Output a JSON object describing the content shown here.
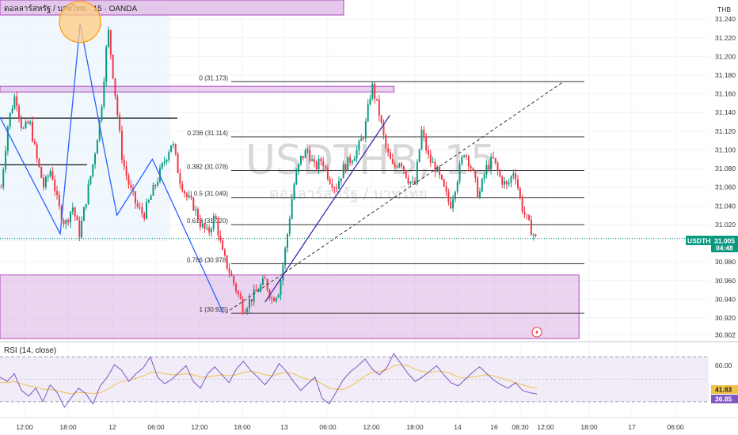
{
  "header": {
    "title": "ดอลลาร์สหรัฐ / บาทไทย · 15 · OANDA",
    "currency": "THB"
  },
  "watermark": {
    "symbol": "USDTHB, 15",
    "name": "ดอลลาร์สหรัฐ / บาทไทย"
  },
  "price_tag": {
    "symbol": "USDTHB",
    "price": "31.005",
    "countdown": "04:48"
  },
  "rsi": {
    "label": "RSI (14, close)",
    "rsi_value": "36.85",
    "ma_value": "41.83",
    "tick_label": "60.00"
  },
  "colors": {
    "background": "#ffffff",
    "up": "#089981",
    "down": "#f23645",
    "zone": "#ce93d8",
    "wave": "#2962ff",
    "rsi_line": "#7e57c2",
    "rsi_ma": "#f0c24a",
    "rsi_band": "#ede7f6",
    "session": "#e3f2fd"
  },
  "icons": [
    "lightning-icon"
  ],
  "chart_data": [
    {
      "type": "candlestick",
      "title": "ดอลลาร์สหรัฐ / บาทไทย · 15 · OANDA",
      "y_ticks": [
        "31.240",
        "31.220",
        "31.200",
        "31.180",
        "31.160",
        "31.140",
        "31.120",
        "31.100",
        "31.080",
        "31.060",
        "31.040",
        "31.020",
        "30.980",
        "30.960",
        "30.940",
        "30.920",
        "30.902"
      ],
      "ylim": [
        30.898,
        31.252
      ],
      "x_ticks": [
        "12:00",
        "18:00",
        "12",
        "06:00",
        "12:00",
        "18:00",
        "13",
        "06:00",
        "12:00",
        "18:00",
        "14",
        "16",
        "08:30",
        "12:00",
        "18:00",
        "17",
        "06:00"
      ],
      "last_price": 31.005,
      "path_points": [
        31.06,
        31.13,
        31.16,
        31.12,
        31.13,
        31.09,
        31.06,
        31.08,
        31.04,
        31.02,
        31.04,
        31.01,
        31.05,
        31.09,
        31.14,
        31.23,
        31.16,
        31.09,
        31.06,
        31.04,
        31.03,
        31.05,
        31.07,
        31.09,
        31.11,
        31.07,
        31.05,
        31.04,
        31.02,
        31.01,
        31.03,
        30.99,
        30.97,
        30.95,
        30.93,
        30.94,
        30.95,
        30.96,
        30.94,
        30.95,
        31.0,
        31.06,
        31.09,
        31.1,
        31.08,
        31.09,
        31.07,
        31.06,
        31.08,
        31.09,
        31.1,
        31.12,
        31.17,
        31.14,
        31.1,
        31.08,
        31.09,
        31.07,
        31.06,
        31.12,
        31.09,
        31.08,
        31.06,
        31.04,
        31.07,
        31.1,
        31.08,
        31.05,
        31.08,
        31.09,
        31.07,
        31.06,
        31.08,
        31.04,
        31.02,
        31.005
      ],
      "fibonacci": [
        {
          "label": "0 (31.173)",
          "value": 31.173
        },
        {
          "label": "0.236 (31.114)",
          "value": 31.114
        },
        {
          "label": "0.382 (31.078)",
          "value": 31.078
        },
        {
          "label": "0.5 (31.049)",
          "value": 31.049
        },
        {
          "label": "0.618 (31.020)",
          "value": 31.02
        },
        {
          "label": "0.786 (30.978)",
          "value": 30.978
        },
        {
          "label": "1 (30.925)",
          "value": 30.925
        }
      ],
      "zones": [
        {
          "top": 31.168,
          "bottom": 31.162,
          "x_from": 0.0,
          "x_to": 0.556
        },
        {
          "top": 30.966,
          "bottom": 30.898,
          "x_from": 0.0,
          "x_to": 0.817
        }
      ],
      "support_lines": [
        31.134,
        31.084
      ],
      "wave_points": [
        [
          0.0,
          31.135
        ],
        [
          0.085,
          31.01
        ],
        [
          0.113,
          31.235
        ],
        [
          0.165,
          31.03
        ],
        [
          0.215,
          31.09
        ],
        [
          0.315,
          30.925
        ]
      ],
      "trend_line": [
        [
          0.374,
          30.937
        ],
        [
          0.55,
          31.137
        ]
      ],
      "dashed_line": [
        [
          0.318,
          30.925
        ],
        [
          0.795,
          31.173
        ]
      ],
      "highlight_circle": {
        "x": 0.113,
        "y": 31.237
      },
      "session_band": {
        "x_from": 0.0,
        "x_to": 0.24
      }
    },
    {
      "type": "line",
      "title": "RSI (14, close)",
      "ylim": [
        20,
        80
      ],
      "bands": [
        30,
        70
      ],
      "y_ticks": [
        "60.00"
      ],
      "series": [
        {
          "name": "RSI",
          "last": 36.85,
          "values": [
            52,
            48,
            55,
            40,
            35,
            42,
            30,
            45,
            38,
            25,
            34,
            42,
            37,
            28,
            44,
            52,
            63,
            58,
            48,
            55,
            60,
            70,
            52,
            46,
            50,
            56,
            62,
            48,
            42,
            55,
            61,
            54,
            47,
            59,
            66,
            58,
            52,
            45,
            53,
            64,
            57,
            48,
            40,
            46,
            52,
            33,
            28,
            39,
            50,
            57,
            62,
            68,
            59,
            54,
            60,
            73,
            64,
            55,
            48,
            52,
            57,
            62,
            54,
            47,
            44,
            50,
            56,
            61,
            55,
            49,
            45,
            42,
            47,
            40,
            38,
            36.85
          ]
        },
        {
          "name": "RSI MA",
          "last": 41.83,
          "values": [
            47,
            47,
            48,
            46,
            44,
            43,
            41,
            41,
            40,
            38,
            37,
            38,
            38,
            37,
            38,
            41,
            45,
            48,
            49,
            51,
            53,
            56,
            56,
            55,
            54,
            54,
            55,
            54,
            52,
            52,
            53,
            54,
            53,
            54,
            56,
            57,
            56,
            54,
            53,
            55,
            56,
            55,
            52,
            50,
            49,
            46,
            42,
            41,
            41,
            44,
            48,
            53,
            56,
            57,
            58,
            62,
            63,
            62,
            59,
            57,
            56,
            57,
            57,
            55,
            52,
            51,
            52,
            53,
            54,
            53,
            51,
            49,
            47,
            45,
            43,
            41.83
          ]
        }
      ]
    }
  ]
}
